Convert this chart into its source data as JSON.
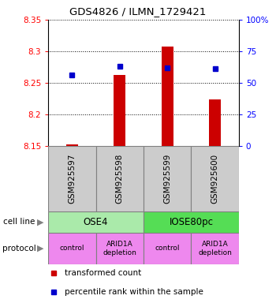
{
  "title": "GDS4826 / ILMN_1729421",
  "samples": [
    "GSM925597",
    "GSM925598",
    "GSM925599",
    "GSM925600"
  ],
  "bar_values": [
    8.152,
    8.263,
    8.307,
    8.224
  ],
  "bar_base": 8.15,
  "percentile_values": [
    56,
    63,
    62,
    61
  ],
  "ylim": [
    8.15,
    8.35
  ],
  "yticks": [
    8.15,
    8.2,
    8.25,
    8.3,
    8.35
  ],
  "right_yticks": [
    0,
    25,
    50,
    75,
    100
  ],
  "right_yticklabels": [
    "0",
    "25",
    "50",
    "75",
    "100%"
  ],
  "bar_color": "#cc0000",
  "dot_color": "#0000cc",
  "cell_line_labels": [
    "OSE4",
    "IOSE80pc"
  ],
  "cell_line_spans": [
    [
      0,
      2
    ],
    [
      2,
      4
    ]
  ],
  "cell_line_color_OSE4": "#aaeaaa",
  "cell_line_color_IOSE80pc": "#55dd55",
  "protocol_labels": [
    "control",
    "ARID1A\ndepletion",
    "control",
    "ARID1A\ndepletion"
  ],
  "protocol_color": "#ee88ee",
  "sample_box_color": "#cccccc",
  "legend_bar_label": "transformed count",
  "legend_dot_label": "percentile rank within the sample",
  "bar_width": 0.25
}
